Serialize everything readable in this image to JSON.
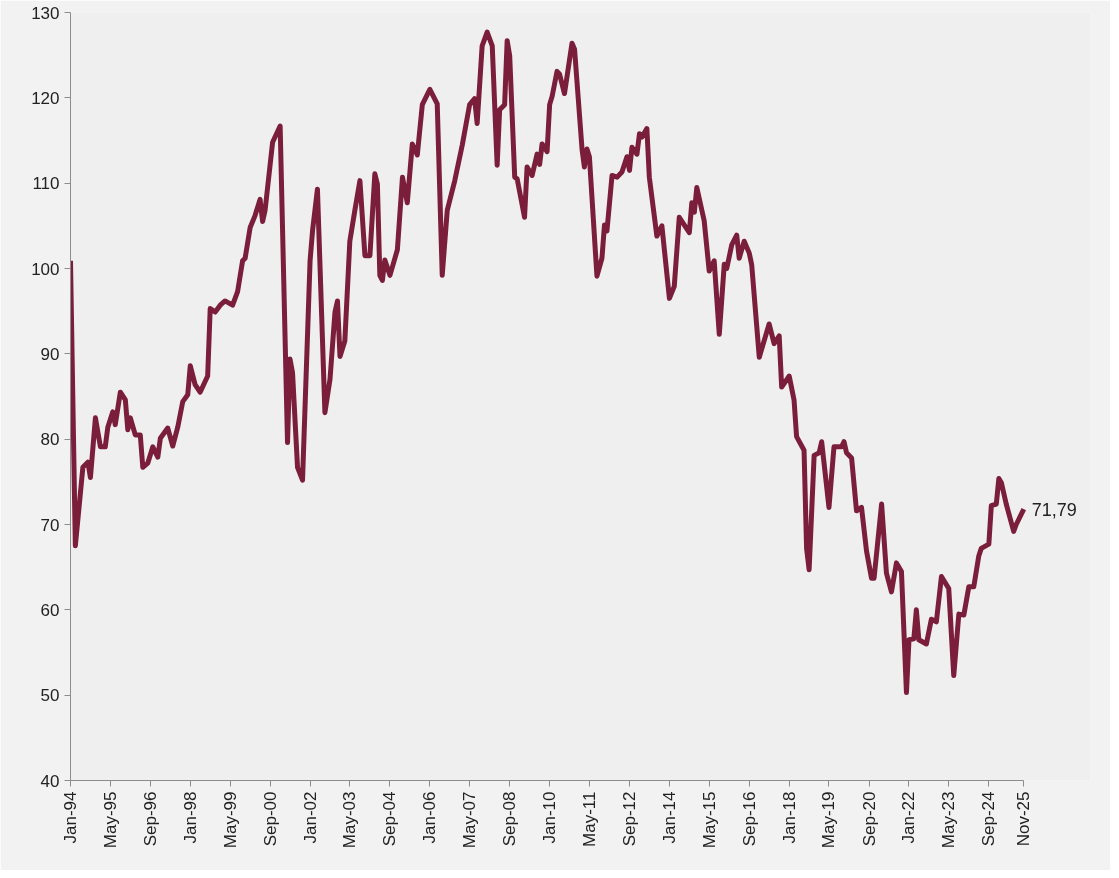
{
  "chart_data": {
    "type": "line",
    "color": "#7b1e3c",
    "line_style": "solid",
    "marker": "none",
    "grid": false,
    "xlim": [
      "1994-01",
      "2025-11"
    ],
    "ylim": [
      40,
      130
    ],
    "yticks": [
      40,
      50,
      60,
      70,
      80,
      90,
      100,
      110,
      120,
      130
    ],
    "xticks": [
      {
        "value": "1994-01",
        "label": "Jan-94"
      },
      {
        "value": "1995-05",
        "label": "May-95"
      },
      {
        "value": "1996-09",
        "label": "Sep-96"
      },
      {
        "value": "1998-01",
        "label": "Jan-98"
      },
      {
        "value": "1999-05",
        "label": "May-99"
      },
      {
        "value": "2000-09",
        "label": "Sep-00"
      },
      {
        "value": "2002-01",
        "label": "Jan-02"
      },
      {
        "value": "2003-05",
        "label": "May-03"
      },
      {
        "value": "2004-09",
        "label": "Sep-04"
      },
      {
        "value": "2006-01",
        "label": "Jan-06"
      },
      {
        "value": "2007-05",
        "label": "May-07"
      },
      {
        "value": "2008-09",
        "label": "Sep-08"
      },
      {
        "value": "2010-01",
        "label": "Jan-10"
      },
      {
        "value": "2011-05",
        "label": "May-11"
      },
      {
        "value": "2012-09",
        "label": "Sep-12"
      },
      {
        "value": "2014-01",
        "label": "Jan-14"
      },
      {
        "value": "2015-05",
        "label": "May-15"
      },
      {
        "value": "2016-09",
        "label": "Sep-16"
      },
      {
        "value": "2018-01",
        "label": "Jan-18"
      },
      {
        "value": "2019-05",
        "label": "May-19"
      },
      {
        "value": "2020-09",
        "label": "Sep-20"
      },
      {
        "value": "2022-01",
        "label": "Jan-22"
      },
      {
        "value": "2023-05",
        "label": "May-23"
      },
      {
        "value": "2024-09",
        "label": "Sep-24"
      },
      {
        "value": "2025-11",
        "label": "Nov-25"
      }
    ],
    "x": [
      "1994-01",
      "1994-03",
      "1994-06",
      "1994-08",
      "1994-09",
      "1994-11",
      "1995-01",
      "1995-03",
      "1995-04",
      "1995-06",
      "1995-07",
      "1995-09",
      "1995-11",
      "1995-12",
      "1996-01",
      "1996-03",
      "1996-05",
      "1996-06",
      "1996-08",
      "1996-10",
      "1996-12",
      "1997-01",
      "1997-04",
      "1997-06",
      "1997-08",
      "1997-10",
      "1997-12",
      "1998-01",
      "1998-03",
      "1998-05",
      "1998-08",
      "1998-09",
      "1998-11",
      "1999-01",
      "1999-03",
      "1999-06",
      "1999-08",
      "1999-10",
      "1999-11",
      "2000-01",
      "2000-03",
      "2000-05",
      "2000-06",
      "2000-07",
      "2000-10",
      "2001-01",
      "2001-04",
      "2001-05",
      "2001-06",
      "2001-08",
      "2001-10",
      "2002-01",
      "2002-02",
      "2002-04",
      "2002-07",
      "2002-09",
      "2002-11",
      "2002-12",
      "2003-01",
      "2003-03",
      "2003-05",
      "2003-07",
      "2003-09",
      "2003-11",
      "2004-01",
      "2004-03",
      "2004-04",
      "2004-05",
      "2004-06",
      "2004-07",
      "2004-09",
      "2004-12",
      "2005-02",
      "2005-04",
      "2005-06",
      "2005-08",
      "2005-10",
      "2006-01",
      "2006-04",
      "2006-06",
      "2006-08",
      "2006-11",
      "2007-02",
      "2007-05",
      "2007-07",
      "2007-08",
      "2007-10",
      "2007-12",
      "2008-02",
      "2008-04",
      "2008-05",
      "2008-07",
      "2008-08",
      "2008-09",
      "2008-11",
      "2008-12",
      "2009-03",
      "2009-04",
      "2009-06",
      "2009-08",
      "2009-09",
      "2009-10",
      "2009-12",
      "2010-01",
      "2010-02",
      "2010-04",
      "2010-05",
      "2010-07",
      "2010-10",
      "2010-11",
      "2011-02",
      "2011-03",
      "2011-04",
      "2011-05",
      "2011-08",
      "2011-10",
      "2011-11",
      "2011-12",
      "2012-02",
      "2012-04",
      "2012-06",
      "2012-08",
      "2012-09",
      "2012-10",
      "2012-12",
      "2013-01",
      "2013-02",
      "2013-04",
      "2013-05",
      "2013-08",
      "2013-10",
      "2014-01",
      "2014-03",
      "2014-05",
      "2014-09",
      "2014-10",
      "2014-11",
      "2014-12",
      "2015-03",
      "2015-05",
      "2015-07",
      "2015-09",
      "2015-11",
      "2015-12",
      "2016-02",
      "2016-04",
      "2016-05",
      "2016-07",
      "2016-09",
      "2016-10",
      "2017-01",
      "2017-05",
      "2017-07",
      "2017-09",
      "2017-10",
      "2018-01",
      "2018-03",
      "2018-04",
      "2018-07",
      "2018-08",
      "2018-09",
      "2018-11",
      "2019-01",
      "2019-02",
      "2019-05",
      "2019-07",
      "2019-10",
      "2019-11",
      "2019-12",
      "2020-02",
      "2020-04",
      "2020-06",
      "2020-08",
      "2020-10",
      "2020-11",
      "2021-02",
      "2021-04",
      "2021-06",
      "2021-08",
      "2021-10",
      "2021-12",
      "2022-01",
      "2022-03",
      "2022-04",
      "2022-05",
      "2022-08",
      "2022-10",
      "2022-12",
      "2023-02",
      "2023-05",
      "2023-07",
      "2023-09",
      "2023-11",
      "2024-01",
      "2024-03",
      "2024-05",
      "2024-06",
      "2024-09",
      "2024-10",
      "2024-12",
      "2025-01",
      "2025-02",
      "2025-04",
      "2025-07",
      "2025-08",
      "2025-11"
    ],
    "values": [
      100.9,
      67.5,
      76.7,
      77.3,
      75.5,
      82.5,
      79.1,
      79.1,
      81.4,
      83.2,
      81.7,
      85.5,
      84.6,
      81.1,
      82.5,
      80.5,
      80.5,
      76.7,
      77.2,
      79.1,
      77.9,
      80.1,
      81.3,
      79.2,
      81.4,
      84.4,
      85.2,
      88.6,
      86.4,
      85.5,
      87.4,
      95.3,
      94.9,
      95.7,
      96.2,
      95.7,
      97.3,
      100.9,
      101.2,
      104.8,
      106.2,
      108.1,
      105.5,
      106.8,
      114.8,
      116.7,
      79.6,
      89.4,
      87.8,
      76.7,
      75.2,
      100.9,
      104.5,
      109.3,
      83.1,
      87.0,
      94.9,
      96.2,
      89.7,
      91.5,
      103.2,
      106.8,
      110.3,
      101.5,
      101.5,
      111.1,
      109.9,
      99.2,
      98.6,
      101.0,
      99.2,
      102.2,
      110.7,
      107.7,
      114.6,
      113.3,
      119.2,
      121.0,
      119.3,
      99.2,
      106.8,
      110.3,
      114.5,
      119.2,
      119.9,
      117.0,
      126.1,
      127.7,
      126.1,
      112.1,
      118.6,
      119.2,
      126.7,
      124.9,
      110.7,
      110.5,
      106.0,
      111.9,
      110.9,
      113.4,
      112.2,
      114.6,
      113.7,
      119.2,
      120.2,
      123.1,
      122.8,
      120.5,
      126.4,
      125.7,
      113.9,
      111.9,
      114.0,
      113.1,
      99.1,
      101.2,
      105.1,
      104.4,
      110.9,
      110.7,
      111.3,
      113.1,
      111.5,
      114.2,
      113.4,
      115.8,
      115.4,
      116.4,
      110.7,
      103.8,
      105.0,
      96.5,
      97.9,
      106.0,
      104.2,
      107.7,
      106.6,
      109.5,
      105.6,
      99.7,
      100.9,
      92.3,
      100.5,
      100.0,
      102.8,
      103.9,
      101.2,
      103.2,
      101.8,
      100.4,
      89.6,
      93.5,
      91.2,
      92.1,
      86.1,
      87.4,
      84.6,
      80.3,
      78.7,
      67.2,
      64.7,
      78.1,
      78.4,
      79.7,
      72.0,
      79.1,
      79.1,
      79.7,
      78.4,
      77.8,
      71.6,
      72.0,
      66.9,
      63.7,
      63.7,
      72.4,
      64.3,
      62.1,
      65.5,
      64.5,
      50.3,
      56.5,
      56.6,
      60.0,
      56.5,
      56.0,
      58.9,
      58.6,
      63.9,
      62.5,
      52.3,
      59.5,
      59.4,
      62.7,
      62.7,
      66.3,
      67.2,
      67.7,
      72.2,
      72.4,
      75.4,
      74.9,
      72.4,
      69.2,
      70.0,
      71.79
    ],
    "annotations": [
      {
        "text": "71,79",
        "x": "2025-11",
        "y": 71.79
      }
    ]
  }
}
